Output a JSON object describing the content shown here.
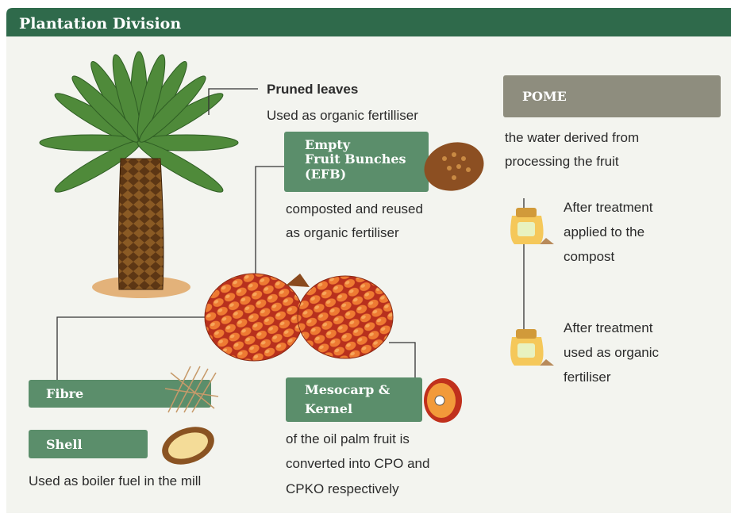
{
  "header": {
    "title": "Plantation Division"
  },
  "pruned_leaves": {
    "title": "Pruned leaves",
    "description": "Used as organic fertilliser"
  },
  "efb": {
    "label_lines": [
      "Empty",
      "Fruit Bunches",
      "(EFB)"
    ],
    "description_lines": [
      "composted and reused",
      "as organic fertiliser"
    ]
  },
  "pome": {
    "label": "POME",
    "description_lines": [
      "the water derived from",
      "processing the fruit"
    ],
    "steps": [
      {
        "lines": [
          "After treatment",
          "applied to the",
          "compost"
        ]
      },
      {
        "lines": [
          "After treatment",
          "used as organic",
          "fertiliser"
        ]
      }
    ]
  },
  "fibre": {
    "label": "Fibre"
  },
  "shell": {
    "label": "Shell"
  },
  "fibre_shell_description": "Used as boiler fuel in the mill",
  "mesocarp_kernel": {
    "label_lines": [
      "Mesocarp &",
      "Kernel"
    ],
    "description_lines": [
      "of the oil palm fruit is",
      "converted into CPO and",
      "CPKO respectively"
    ]
  }
}
